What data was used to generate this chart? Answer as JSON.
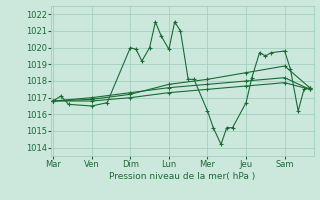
{
  "background_color": "#cce8dc",
  "grid_color": "#99ccbb",
  "line_color": "#1a6b35",
  "xlabel": "Pression niveau de la mer( hPa )",
  "ylim": [
    1013.5,
    1022.5
  ],
  "yticks": [
    1014,
    1015,
    1016,
    1017,
    1018,
    1019,
    1020,
    1021,
    1022
  ],
  "day_labels": [
    "Mar",
    "Ven",
    "Dim",
    "Lun",
    "Mer",
    "Jeu",
    "Sam"
  ],
  "day_positions": [
    0,
    1,
    2,
    3,
    4,
    5,
    6
  ],
  "xlim": [
    -0.05,
    6.75
  ],
  "series": [
    [
      0.0,
      1016.8,
      0.2,
      1017.1,
      0.4,
      1016.6,
      1.0,
      1016.5,
      1.4,
      1016.7,
      2.0,
      1020.0,
      2.15,
      1019.9,
      2.3,
      1019.2,
      2.5,
      1020.0,
      2.65,
      1021.55,
      2.8,
      1020.7,
      3.0,
      1019.9,
      3.15,
      1021.55,
      3.3,
      1021.0,
      3.5,
      1018.1,
      3.65,
      1018.1,
      4.0,
      1016.2,
      4.15,
      1015.2,
      4.35,
      1014.2,
      4.5,
      1015.2,
      4.65,
      1015.2,
      5.0,
      1016.7,
      5.15,
      1018.2,
      5.35,
      1019.7,
      5.5,
      1019.5,
      5.65,
      1019.7,
      6.0,
      1019.8,
      6.15,
      1018.7,
      6.35,
      1016.2,
      6.5,
      1017.5,
      6.65,
      1017.6
    ],
    [
      0.0,
      1016.8,
      1.0,
      1016.9,
      2.0,
      1017.2,
      3.0,
      1017.8,
      4.0,
      1018.1,
      5.0,
      1018.5,
      6.0,
      1018.9,
      6.65,
      1017.6
    ],
    [
      0.0,
      1016.8,
      1.0,
      1017.0,
      2.0,
      1017.3,
      3.0,
      1017.6,
      4.0,
      1017.8,
      5.0,
      1018.0,
      6.0,
      1018.2,
      6.65,
      1017.5
    ],
    [
      0.0,
      1016.8,
      1.0,
      1016.8,
      2.0,
      1017.0,
      3.0,
      1017.3,
      4.0,
      1017.5,
      5.0,
      1017.7,
      6.0,
      1017.9,
      6.65,
      1017.5
    ]
  ]
}
